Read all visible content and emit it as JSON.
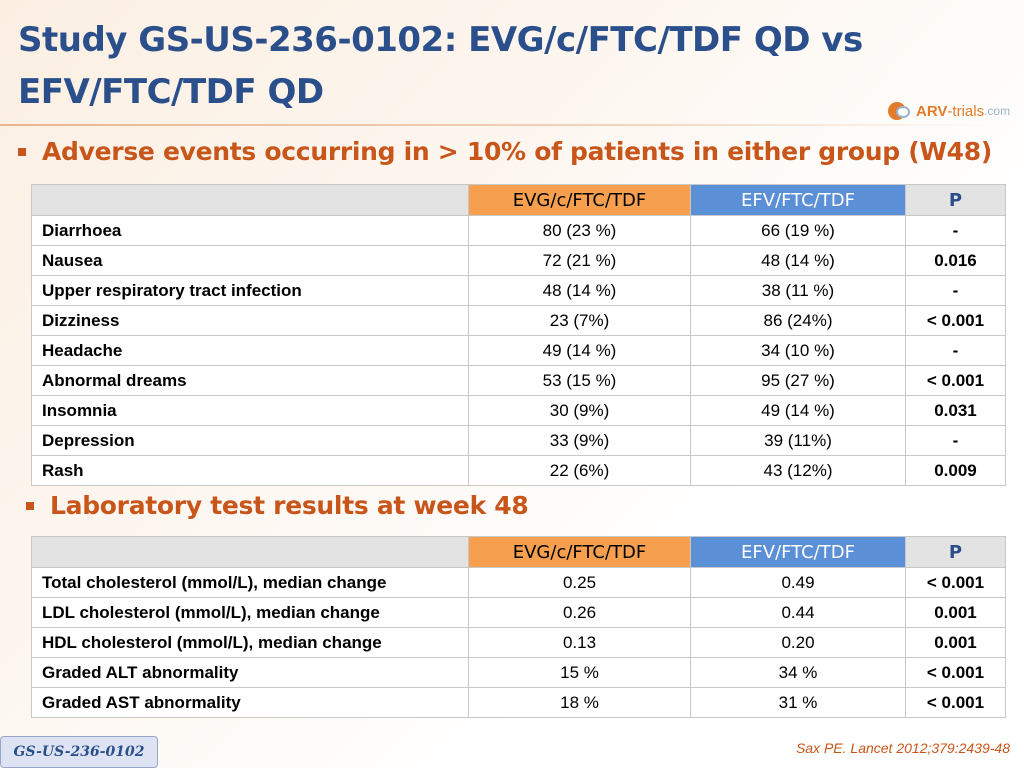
{
  "slide": {
    "title": "Study GS-US-236-0102: EVG/c/FTC/TDF QD vs EFV/FTC/TDF QD",
    "logo": {
      "brand": "ARV",
      "rest": "-trials",
      "suffix": ".com"
    },
    "section1": "Adverse events occurring in > 10% of patients in either group (W48)",
    "section2": "Laboratory test results at week 48",
    "footer_tag": "GS-US-236-0102",
    "citation": "Sax PE. Lancet 2012;379:2439-48"
  },
  "table_headers": [
    "",
    "EVG/c/FTC/TDF",
    "EFV/FTC/TDF",
    "P"
  ],
  "adverse_events": [
    {
      "label": "Diarrhoea",
      "evg": "80 (23 %)",
      "efv": "66 (19 %)",
      "p": "-"
    },
    {
      "label": "Nausea",
      "evg": "72 (21 %)",
      "efv": "48 (14 %)",
      "p": "0.016"
    },
    {
      "label": "Upper respiratory tract infection",
      "evg": "48 (14 %)",
      "efv": "38 (11 %)",
      "p": "-"
    },
    {
      "label": "Dizziness",
      "evg": "23 (7%)",
      "efv": "86 (24%)",
      "p": "< 0.001"
    },
    {
      "label": "Headache",
      "evg": "49 (14 %)",
      "efv": "34 (10 %)",
      "p": "-"
    },
    {
      "label": "Abnormal dreams",
      "evg": "53 (15 %)",
      "efv": "95 (27 %)",
      "p": "< 0.001"
    },
    {
      "label": "Insomnia",
      "evg": "30 (9%)",
      "efv": "49 (14 %)",
      "p": "0.031"
    },
    {
      "label": "Depression",
      "evg": "33 (9%)",
      "efv": "39 (11%)",
      "p": "-"
    },
    {
      "label": "Rash",
      "evg": "22 (6%)",
      "efv": "43 (12%)",
      "p": "0.009"
    }
  ],
  "lab_results": [
    {
      "label": "Total cholesterol (mmol/L), median change",
      "evg": "0.25",
      "efv": "0.49",
      "p": "< 0.001"
    },
    {
      "label": "LDL cholesterol (mmol/L), median change",
      "evg": "0.26",
      "efv": "0.44",
      "p": "0.001"
    },
    {
      "label": "HDL cholesterol (mmol/L), median change",
      "evg": "0.13",
      "efv": "0.20",
      "p": "0.001"
    },
    {
      "label": "Graded ALT abnormality",
      "evg": "15 %",
      "efv": "34 %",
      "p": "< 0.001"
    },
    {
      "label": "Graded AST abnormality",
      "evg": "18 %",
      "efv": "31 %",
      "p": "< 0.001"
    }
  ],
  "colors": {
    "title": "#2b4f8a",
    "accent_orange": "#c8561a",
    "header_evg": "#f6a04f",
    "header_efv": "#5b8fd6",
    "header_gray": "#e3e3e3"
  }
}
